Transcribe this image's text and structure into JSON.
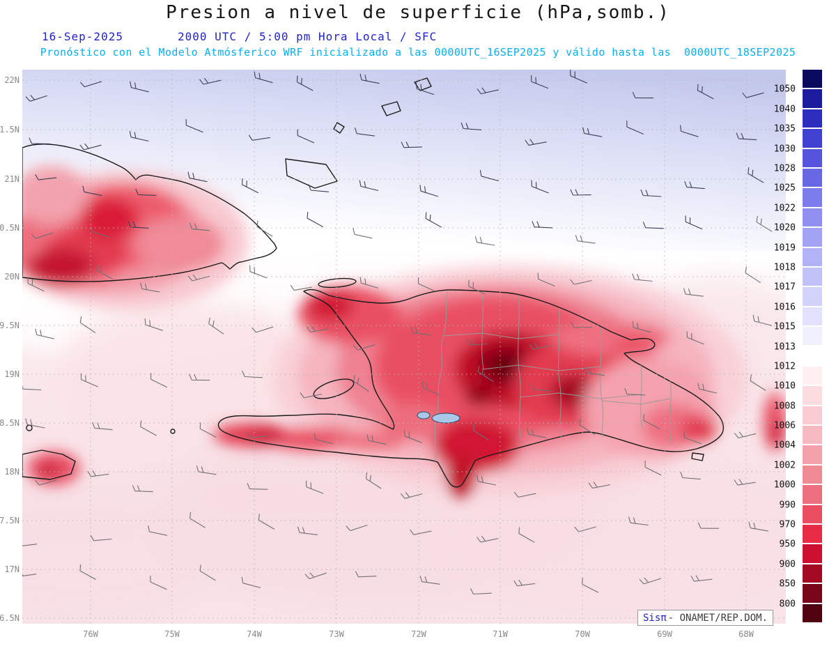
{
  "title": "Presion a nivel de superficie (hPa,somb.)",
  "subtitle": {
    "date": "16-Sep-2025",
    "time": "2000 UTC / 5:00 pm Hora Local / SFC",
    "forecast": "Pronóstico con el Modelo Atmósferico WRF inicializado a las 0000UTC_16SEP2025 y válido hasta las  0000UTC_18SEP2025"
  },
  "credit": {
    "brand": "Sisπ",
    "org": "- ONAMET/REP.DOM."
  },
  "axes": {
    "lat_labels": [
      "22N",
      "1.5N",
      "21N",
      "0.5N",
      "20N",
      "9.5N",
      "19N",
      "8.5N",
      "18N",
      "7.5N",
      "17N",
      "6.5N"
    ],
    "lon_labels": [
      "76W",
      "75W",
      "74W",
      "73W",
      "72W",
      "71W",
      "70W",
      "69W",
      "68W"
    ]
  },
  "colorbar": {
    "units": "hPa",
    "labels": [
      "1050",
      "1040",
      "1035",
      "1030",
      "1028",
      "1025",
      "1022",
      "1020",
      "1019",
      "1018",
      "1017",
      "1016",
      "1015",
      "1013",
      "1012",
      "1010",
      "1008",
      "1006",
      "1004",
      "1002",
      "1000",
      "990",
      "970",
      "950",
      "900",
      "850",
      "800"
    ],
    "colors": [
      "#0a0a5e",
      "#1c1c9e",
      "#2e2ebe",
      "#4242d2",
      "#5555dc",
      "#6868e4",
      "#7c7cea",
      "#9090f0",
      "#a2a2f4",
      "#b2b2f6",
      "#c2c2f8",
      "#d2d2fa",
      "#e2e2fc",
      "#f0f0fe",
      "#ffffff",
      "#fdeef0",
      "#fbdde1",
      "#f8ccd2",
      "#f6b9c1",
      "#f3a2ac",
      "#f08b96",
      "#ed6e7c",
      "#e94f60",
      "#e52c44",
      "#cc1130",
      "#a30b24",
      "#780618",
      "#4f020f"
    ]
  },
  "colors": {
    "accent_blue": "#2323cc",
    "accent_cyan": "#07aef0",
    "axis_label": "#8a8a8a",
    "credit_org": "#3c3c3c"
  }
}
